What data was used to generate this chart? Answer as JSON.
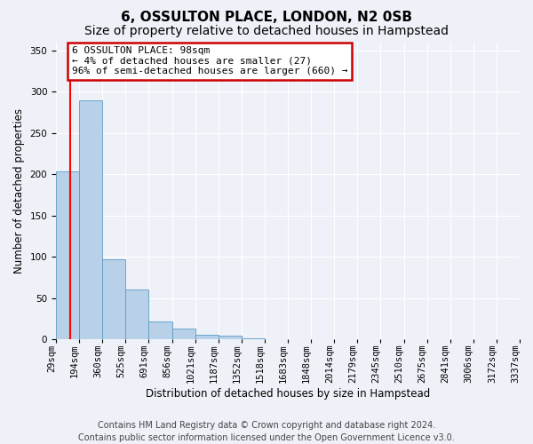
{
  "title": "6, OSSULTON PLACE, LONDON, N2 0SB",
  "subtitle": "Size of property relative to detached houses in Hampstead",
  "xlabel": "Distribution of detached houses by size in Hampstead",
  "ylabel": "Number of detached properties",
  "bar_values": [
    203,
    290,
    97,
    60,
    22,
    13,
    5,
    4,
    1,
    0,
    0,
    0,
    0,
    0,
    0,
    0,
    0,
    0,
    0,
    0
  ],
  "bar_labels": [
    "29sqm",
    "194sqm",
    "360sqm",
    "525sqm",
    "691sqm",
    "856sqm",
    "1021sqm",
    "1187sqm",
    "1352sqm",
    "1518sqm",
    "1683sqm",
    "1848sqm",
    "2014sqm",
    "2179sqm",
    "2345sqm",
    "2510sqm",
    "2675sqm",
    "2841sqm",
    "3006sqm",
    "3172sqm",
    "3337sqm"
  ],
  "bar_color": "#b8d0e8",
  "bar_edge_color": "#5a9cc5",
  "red_line_x": 0.6,
  "annotation_title": "6 OSSULTON PLACE: 98sqm",
  "annotation_line1": "← 4% of detached houses are smaller (27)",
  "annotation_line2": "96% of semi-detached houses are larger (660) →",
  "annotation_box_color": "#ffffff",
  "annotation_box_edge": "#cc0000",
  "ylim": [
    0,
    360
  ],
  "yticks": [
    0,
    50,
    100,
    150,
    200,
    250,
    300,
    350
  ],
  "footer1": "Contains HM Land Registry data © Crown copyright and database right 2024.",
  "footer2": "Contains public sector information licensed under the Open Government Licence v3.0.",
  "background_color": "#eef2f8",
  "grid_color": "#ffffff",
  "title_fontsize": 11,
  "subtitle_fontsize": 10,
  "axis_label_fontsize": 8.5,
  "tick_fontsize": 7.5,
  "footer_fontsize": 7,
  "annotation_fontsize": 8
}
